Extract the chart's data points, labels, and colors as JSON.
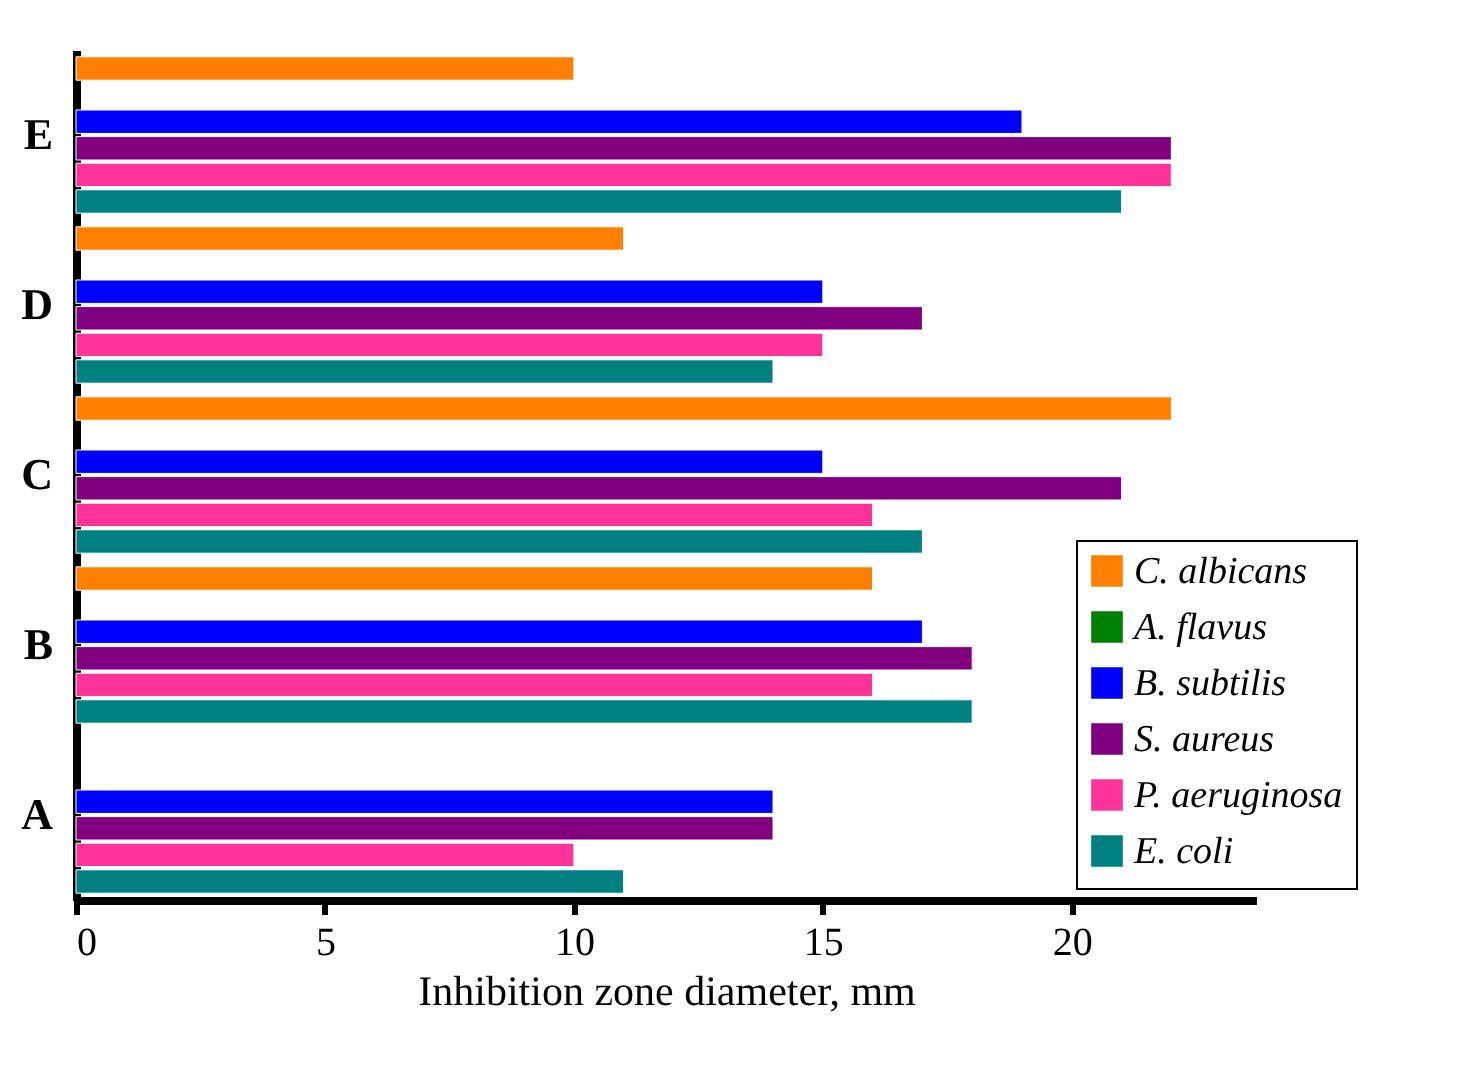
{
  "chart_data": {
    "type": "bar",
    "orientation": "horizontal",
    "xlabel": "Inhibition zone diameter, mm",
    "categories": [
      "E",
      "D",
      "C",
      "B",
      "A"
    ],
    "xlim": [
      0,
      23.7
    ],
    "xticks": [
      0,
      5,
      10,
      15,
      20
    ],
    "legend": "bottom right",
    "series": [
      {
        "name": "C. albicans",
        "color": "#ff8000",
        "values": [
          10,
          11,
          22,
          16,
          null
        ]
      },
      {
        "name": "A. flavus",
        "color": "#008000",
        "values": [
          null,
          null,
          null,
          null,
          null
        ]
      },
      {
        "name": "B. subtilis",
        "color": "#0000ff",
        "values": [
          19,
          15,
          15,
          17,
          14
        ]
      },
      {
        "name": "S. aureus",
        "color": "#800080",
        "values": [
          22,
          17,
          21,
          18,
          14
        ]
      },
      {
        "name": "P. aeruginosa",
        "color": "#ff3399",
        "values": [
          22,
          15,
          16,
          16,
          10
        ]
      },
      {
        "name": "E. coli",
        "color": "#008080",
        "values": [
          21,
          14,
          17,
          18,
          11
        ]
      }
    ]
  }
}
